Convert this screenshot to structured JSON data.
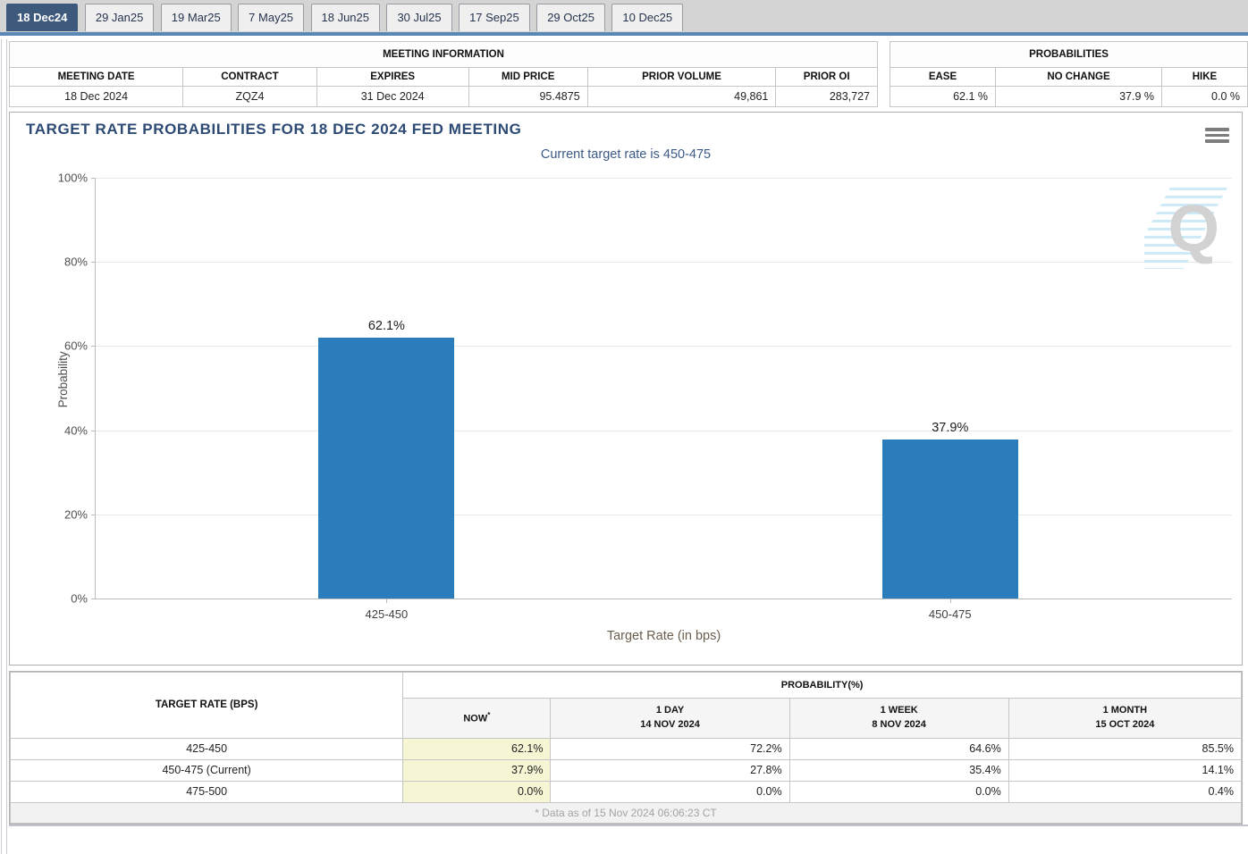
{
  "tabs": [
    {
      "label": "18 Dec24",
      "active": true
    },
    {
      "label": "29 Jan25",
      "active": false
    },
    {
      "label": "19 Mar25",
      "active": false
    },
    {
      "label": "7 May25",
      "active": false
    },
    {
      "label": "18 Jun25",
      "active": false
    },
    {
      "label": "30 Jul25",
      "active": false
    },
    {
      "label": "17 Sep25",
      "active": false
    },
    {
      "label": "29 Oct25",
      "active": false
    },
    {
      "label": "10 Dec25",
      "active": false
    }
  ],
  "meeting_information": {
    "title": "MEETING INFORMATION",
    "columns": [
      "MEETING DATE",
      "CONTRACT",
      "EXPIRES",
      "MID PRICE",
      "PRIOR VOLUME",
      "PRIOR OI"
    ],
    "row": [
      "18 Dec 2024",
      "ZQZ4",
      "31 Dec 2024",
      "95.4875",
      "49,861",
      "283,727"
    ]
  },
  "probabilities": {
    "title": "PROBABILITIES",
    "columns": [
      "EASE",
      "NO CHANGE",
      "HIKE"
    ],
    "row": [
      "62.1 %",
      "37.9 %",
      "0.0 %"
    ]
  },
  "chart": {
    "title": "TARGET RATE PROBABILITIES FOR 18 DEC 2024 FED MEETING",
    "subtitle": "Current target rate is 450-475",
    "watermark_letter": "Q"
  },
  "chart_data": {
    "type": "bar",
    "title": "TARGET RATE PROBABILITIES FOR 18 DEC 2024 FED MEETING",
    "subtitle": "Current target rate is 450-475",
    "categories": [
      "425-450",
      "450-475"
    ],
    "values": [
      62.1,
      37.9
    ],
    "value_labels": [
      "62.1%",
      "37.9%"
    ],
    "xlabel": "Target Rate (in bps)",
    "ylabel": "Probability",
    "ylim": [
      0,
      100
    ],
    "yticks": [
      "0%",
      "20%",
      "40%",
      "60%",
      "80%",
      "100%"
    ],
    "grid": true,
    "legend": false,
    "bar_color": "#2a7cba"
  },
  "probability_table": {
    "corner_header": "TARGET RATE (BPS)",
    "group_header": "PROBABILITY(%)",
    "columns": [
      {
        "label": "NOW",
        "sup": "*"
      },
      {
        "label": "1 DAY",
        "date": "14 NOV 2024"
      },
      {
        "label": "1 WEEK",
        "date": "8 NOV 2024"
      },
      {
        "label": "1 MONTH",
        "date": "15 OCT 2024"
      }
    ],
    "rows": [
      {
        "label": "425-450",
        "values": [
          "62.1%",
          "72.2%",
          "64.6%",
          "85.5%"
        ]
      },
      {
        "label": "450-475 (Current)",
        "values": [
          "37.9%",
          "27.8%",
          "35.4%",
          "14.1%"
        ]
      },
      {
        "label": "475-500",
        "values": [
          "0.0%",
          "0.0%",
          "0.0%",
          "0.4%"
        ]
      }
    ],
    "footnote": "* Data as of 15 Nov 2024 06:06:23 CT"
  },
  "colors": {
    "bar": "#2a7cba",
    "active_tab_bg": "#3d5a7c",
    "tab_underline": "#5b87b7",
    "now_highlight": "#f6f6d5",
    "title_text": "#2c4a73"
  }
}
